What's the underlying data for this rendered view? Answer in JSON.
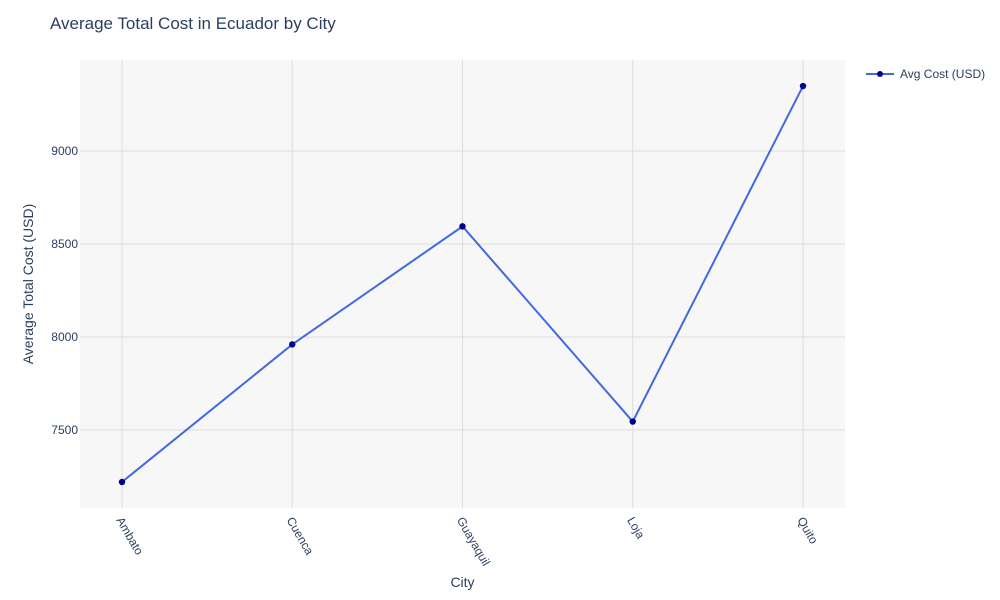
{
  "chart_data": {
    "type": "line",
    "title": "Average Total Cost in Ecuador by City",
    "xlabel": "City",
    "ylabel": "Average Total Cost (USD)",
    "categories": [
      "Ambato",
      "Cuenca",
      "Guayaquil",
      "Loja",
      "Quito"
    ],
    "series": [
      {
        "name": "Avg Cost (USD)",
        "values": [
          7220,
          7960,
          8595,
          7545,
          9350
        ]
      }
    ],
    "y_ticks": [
      7500,
      8000,
      8500,
      9000
    ],
    "ylim": [
      7080,
      9490
    ],
    "grid": true,
    "legend_position": "top-right",
    "colors": {
      "line": "#4169e1",
      "marker": "#00008b",
      "plot_bg": "#f7f7f7",
      "grid": "#dddddd"
    }
  }
}
